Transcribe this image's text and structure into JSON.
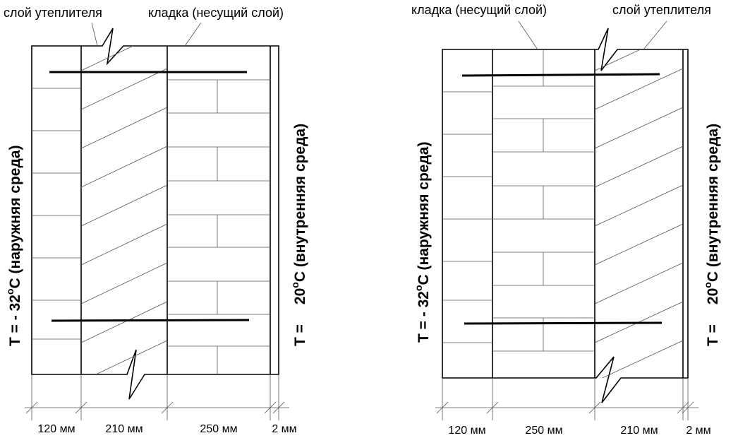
{
  "left": {
    "labels": [
      "слой утеплителя",
      "кладка (несущий слой)"
    ],
    "dimensions": [
      "120 мм",
      "210 мм",
      "250 мм",
      "2 мм"
    ],
    "outer_temp": {
      "prefix": "T =",
      "value": "- 32",
      "degree": "o",
      "suffix": "C (наружняя среда)"
    },
    "inner_temp": {
      "prefix": "T =",
      "value": "20",
      "degree": "o",
      "suffix": "C (внутренняя среда)"
    }
  },
  "right": {
    "labels": [
      "кладка (несущий слой)",
      "слой утеплителя"
    ],
    "dimensions": [
      "120 мм",
      "250 мм",
      "210 мм",
      "2 мм"
    ],
    "outer_temp": {
      "prefix": "T =",
      "value": "- 32",
      "degree": "o",
      "suffix": "C (наружняя среда)"
    },
    "inner_temp": {
      "prefix": "T =",
      "value": "20",
      "degree": "o",
      "suffix": "C (внутренняя среда)"
    }
  }
}
